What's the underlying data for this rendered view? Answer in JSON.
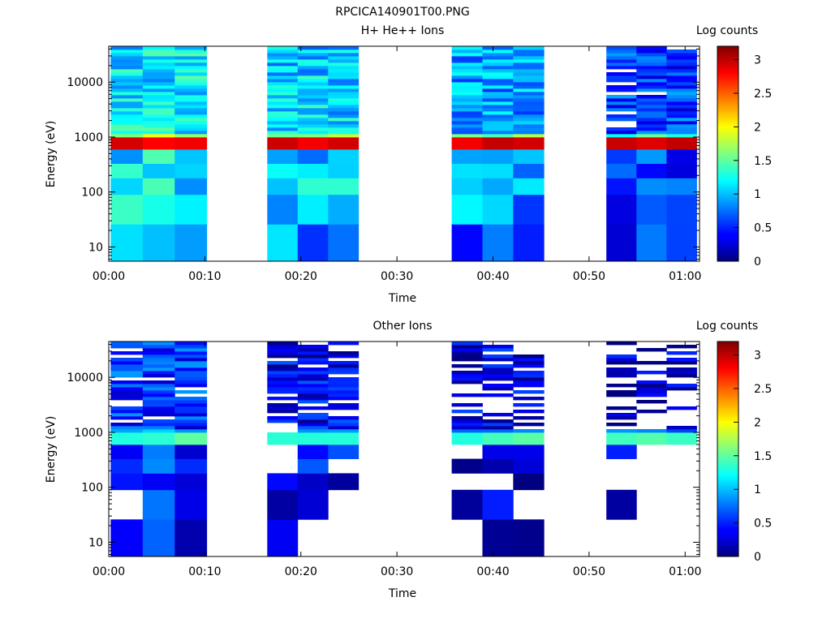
{
  "figure": {
    "title": "RPCICA140901T00.PNG"
  },
  "chart_data": [
    {
      "type": "heatmap",
      "title": "H+ He++ Ions",
      "xlabel": "Time",
      "ylabel": "Energy (eV)",
      "y_scale": "log",
      "xlim_minutes": [
        0,
        61.5
      ],
      "ylim_eV": [
        5.5,
        45000
      ],
      "x_ticks": [
        "00:00",
        "00:10",
        "00:20",
        "00:30",
        "00:40",
        "00:50",
        "01:00"
      ],
      "y_ticks": [
        "10",
        "100",
        "1000",
        "10000"
      ],
      "colorbar": {
        "label": "Log counts",
        "range": [
          0,
          3.2
        ],
        "ticks": [
          "0",
          "0.5",
          "1",
          "1.5",
          "2",
          "2.5",
          "3"
        ]
      },
      "time_blocks": [
        {
          "start_min": 0.2,
          "end_min": 10.2,
          "columns": 3
        },
        {
          "start_min": 16.5,
          "end_min": 26.0,
          "columns": 3
        },
        {
          "start_min": 35.7,
          "end_min": 45.3,
          "columns": 3
        },
        {
          "start_min": 51.8,
          "end_min": 61.2,
          "columns": 3
        }
      ],
      "block_seeds": [
        11,
        23,
        37,
        53
      ],
      "peak_energy_eV": 780,
      "peak_value": 3.0,
      "background_levels": [
        1.15,
        1.05,
        0.9,
        0.6
      ],
      "missing_fraction": [
        0.0,
        0.0,
        0.0,
        0.05
      ]
    },
    {
      "type": "heatmap",
      "title": "Other Ions",
      "xlabel": "Time",
      "ylabel": "Energy (eV)",
      "y_scale": "log",
      "xlim_minutes": [
        0,
        61.5
      ],
      "ylim_eV": [
        5.5,
        45000
      ],
      "x_ticks": [
        "00:00",
        "00:10",
        "00:20",
        "00:30",
        "00:40",
        "00:50",
        "01:00"
      ],
      "y_ticks": [
        "10",
        "100",
        "1000",
        "10000"
      ],
      "colorbar": {
        "label": "Log counts",
        "range": [
          0,
          3.2
        ],
        "ticks": [
          "0",
          "0.5",
          "1",
          "1.5",
          "2",
          "2.5",
          "3"
        ]
      },
      "time_blocks": [
        {
          "start_min": 0.2,
          "end_min": 10.2,
          "columns": 3
        },
        {
          "start_min": 16.5,
          "end_min": 26.0,
          "columns": 3
        },
        {
          "start_min": 35.7,
          "end_min": 45.3,
          "columns": 3
        },
        {
          "start_min": 51.8,
          "end_min": 61.2,
          "columns": 3
        }
      ],
      "block_seeds": [
        71,
        89,
        97,
        113
      ],
      "peak_energy_eV": 780,
      "peak_value": 1.5,
      "background_levels": [
        0.55,
        0.35,
        0.3,
        0.2
      ],
      "missing_fraction": [
        0.12,
        0.3,
        0.45,
        0.6
      ]
    }
  ]
}
